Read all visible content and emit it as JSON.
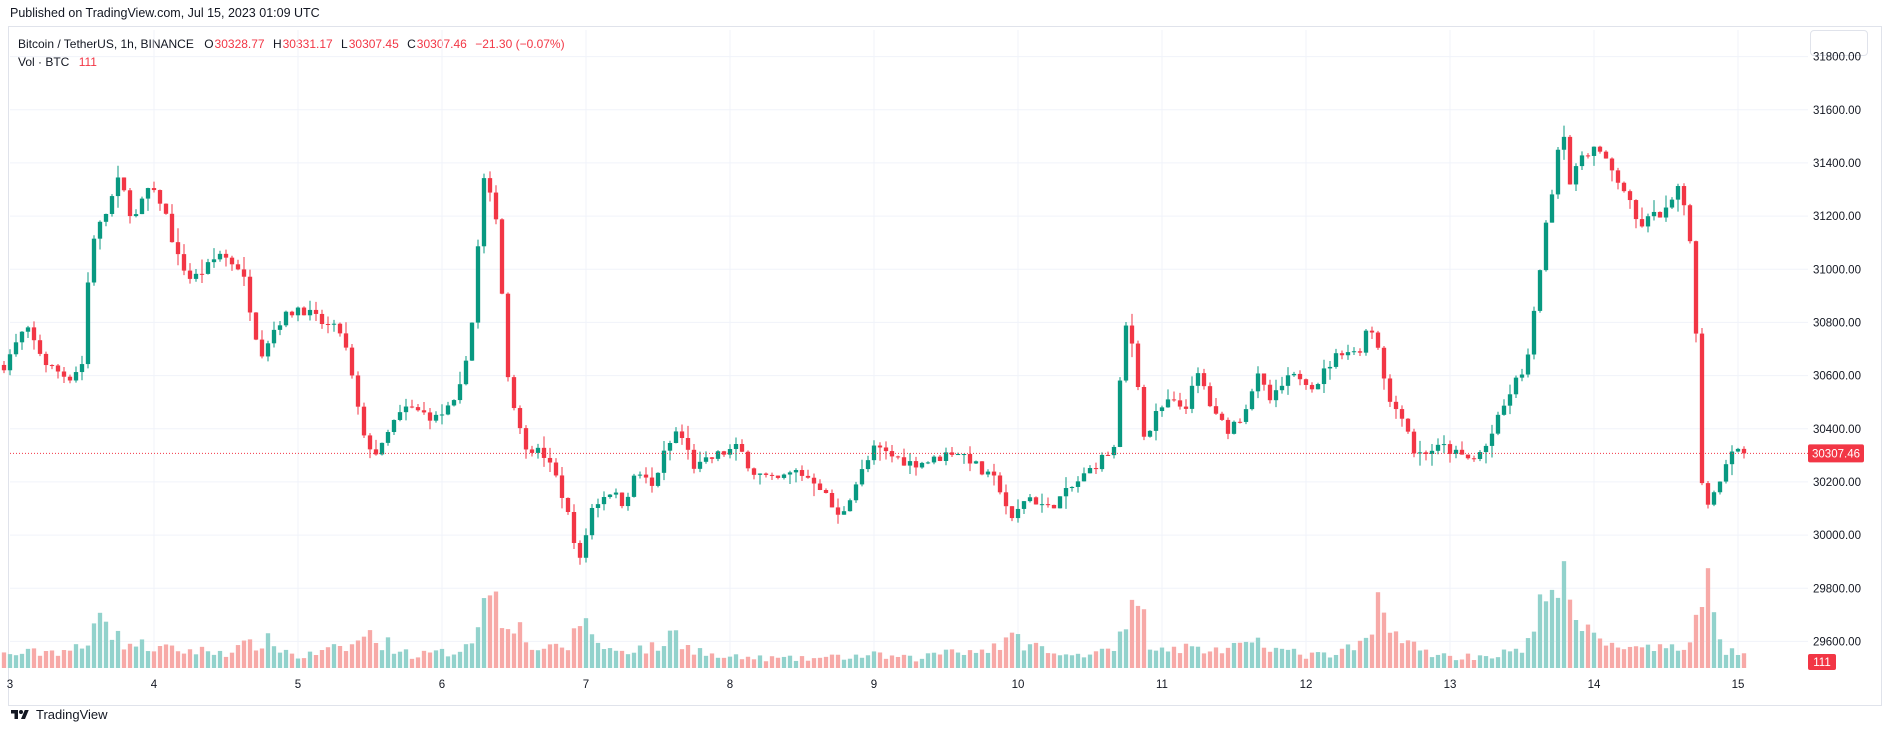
{
  "header": {
    "published": "Published on TradingView.com, Jul 15, 2023 01:09 UTC"
  },
  "legend": {
    "symbol": "Bitcoin / TetherUS, 1h, BINANCE",
    "open_label": "O",
    "open": "30328.77",
    "high_label": "H",
    "high": "30331.17",
    "low_label": "L",
    "low": "30307.45",
    "close_label": "C",
    "close": "30307.46",
    "change": "−21.30 (−0.07%)",
    "volume_label": "Vol · BTC",
    "volume": "111"
  },
  "footer": {
    "brand": "TradingView"
  },
  "colors": {
    "up": "#089981",
    "down": "#f23645",
    "vol_up": "#92d2cc",
    "vol_down": "#f7a9a7",
    "grid": "#f0f3fa",
    "axis_text": "#131722"
  },
  "chart_data": {
    "type": "candlestick",
    "interval": "1h",
    "x_axis": {
      "ticks": [
        "3",
        "4",
        "5",
        "6",
        "7",
        "8",
        "9",
        "10",
        "11",
        "12",
        "13",
        "14",
        "15"
      ]
    },
    "y_axis": {
      "ticks": [
        29600,
        29800,
        30000,
        30200,
        30400,
        30600,
        30800,
        31000,
        31200,
        31400,
        31600,
        31800
      ],
      "range": [
        29500,
        31900
      ],
      "side": "right"
    },
    "last_price": 30307.46,
    "last_price_label": "30307.46",
    "last_volume": 111,
    "last_volume_label": "111",
    "grid": true,
    "anchors": [
      [
        3.0,
        30640
      ],
      [
        3.15,
        30780
      ],
      [
        3.3,
        30640
      ],
      [
        3.45,
        30590
      ],
      [
        3.55,
        30650
      ],
      [
        3.6,
        31100
      ],
      [
        3.7,
        31200
      ],
      [
        3.8,
        31340
      ],
      [
        3.9,
        31180
      ],
      [
        4.0,
        31300
      ],
      [
        4.1,
        31250
      ],
      [
        4.2,
        31050
      ],
      [
        4.3,
        30960
      ],
      [
        4.4,
        31000
      ],
      [
        4.5,
        31060
      ],
      [
        4.65,
        31000
      ],
      [
        4.78,
        30680
      ],
      [
        4.9,
        30800
      ],
      [
        5.05,
        30860
      ],
      [
        5.2,
        30800
      ],
      [
        5.35,
        30760
      ],
      [
        5.42,
        30580
      ],
      [
        5.5,
        30360
      ],
      [
        5.6,
        30300
      ],
      [
        5.7,
        30420
      ],
      [
        5.8,
        30480
      ],
      [
        6.0,
        30440
      ],
      [
        6.15,
        30500
      ],
      [
        6.25,
        30800
      ],
      [
        6.33,
        31340
      ],
      [
        6.42,
        31200
      ],
      [
        6.5,
        30600
      ],
      [
        6.6,
        30350
      ],
      [
        6.75,
        30300
      ],
      [
        6.85,
        30200
      ],
      [
        6.93,
        30050
      ],
      [
        7.0,
        29900
      ],
      [
        7.08,
        30100
      ],
      [
        7.2,
        30170
      ],
      [
        7.3,
        30120
      ],
      [
        7.4,
        30240
      ],
      [
        7.5,
        30180
      ],
      [
        7.58,
        30300
      ],
      [
        7.68,
        30400
      ],
      [
        7.8,
        30250
      ],
      [
        7.95,
        30300
      ],
      [
        8.1,
        30330
      ],
      [
        8.2,
        30240
      ],
      [
        8.35,
        30200
      ],
      [
        8.5,
        30240
      ],
      [
        8.65,
        30200
      ],
      [
        8.8,
        30060
      ],
      [
        8.92,
        30200
      ],
      [
        9.05,
        30330
      ],
      [
        9.15,
        30300
      ],
      [
        9.3,
        30270
      ],
      [
        9.45,
        30280
      ],
      [
        9.6,
        30320
      ],
      [
        9.7,
        30290
      ],
      [
        9.8,
        30230
      ],
      [
        9.9,
        30200
      ],
      [
        10.0,
        30050
      ],
      [
        10.1,
        30150
      ],
      [
        10.25,
        30100
      ],
      [
        10.4,
        30170
      ],
      [
        10.55,
        30250
      ],
      [
        10.65,
        30300
      ],
      [
        10.72,
        30330
      ],
      [
        10.78,
        30800
      ],
      [
        10.85,
        30700
      ],
      [
        10.92,
        30350
      ],
      [
        11.0,
        30450
      ],
      [
        11.08,
        30500
      ],
      [
        11.2,
        30480
      ],
      [
        11.3,
        30610
      ],
      [
        11.4,
        30450
      ],
      [
        11.5,
        30400
      ],
      [
        11.6,
        30450
      ],
      [
        11.7,
        30600
      ],
      [
        11.8,
        30500
      ],
      [
        11.9,
        30580
      ],
      [
        12.0,
        30600
      ],
      [
        12.1,
        30560
      ],
      [
        12.2,
        30640
      ],
      [
        12.3,
        30700
      ],
      [
        12.4,
        30680
      ],
      [
        12.48,
        30800
      ],
      [
        12.55,
        30700
      ],
      [
        12.62,
        30500
      ],
      [
        12.72,
        30450
      ],
      [
        12.8,
        30300
      ],
      [
        12.9,
        30320
      ],
      [
        13.0,
        30330
      ],
      [
        13.1,
        30300
      ],
      [
        13.2,
        30280
      ],
      [
        13.3,
        30340
      ],
      [
        13.38,
        30440
      ],
      [
        13.48,
        30560
      ],
      [
        13.55,
        30620
      ],
      [
        13.6,
        30700
      ],
      [
        13.65,
        30950
      ],
      [
        13.72,
        31200
      ],
      [
        13.78,
        31400
      ],
      [
        13.82,
        31580
      ],
      [
        13.88,
        31300
      ],
      [
        13.95,
        31430
      ],
      [
        14.05,
        31460
      ],
      [
        14.15,
        31380
      ],
      [
        14.25,
        31300
      ],
      [
        14.35,
        31160
      ],
      [
        14.45,
        31200
      ],
      [
        14.55,
        31220
      ],
      [
        14.62,
        31300
      ],
      [
        14.7,
        31200
      ],
      [
        14.75,
        30750
      ],
      [
        14.8,
        30100
      ],
      [
        14.88,
        30160
      ],
      [
        14.95,
        30270
      ],
      [
        15.0,
        30328
      ],
      [
        15.07,
        30307
      ]
    ],
    "volume_anchors": [
      [
        3.0,
        15
      ],
      [
        3.55,
        22
      ],
      [
        3.62,
        88
      ],
      [
        3.72,
        35
      ],
      [
        3.8,
        28
      ],
      [
        4.1,
        20
      ],
      [
        4.5,
        18
      ],
      [
        4.78,
        30
      ],
      [
        5.0,
        12
      ],
      [
        5.4,
        25
      ],
      [
        5.45,
        38
      ],
      [
        5.6,
        28
      ],
      [
        5.8,
        14
      ],
      [
        6.1,
        18
      ],
      [
        6.25,
        45
      ],
      [
        6.3,
        70
      ],
      [
        6.33,
        105
      ],
      [
        6.42,
        60
      ],
      [
        6.5,
        55
      ],
      [
        6.55,
        40
      ],
      [
        6.6,
        25
      ],
      [
        6.75,
        20
      ],
      [
        6.88,
        25
      ],
      [
        7.0,
        60
      ],
      [
        7.1,
        20
      ],
      [
        7.5,
        22
      ],
      [
        7.6,
        40
      ],
      [
        7.7,
        25
      ],
      [
        7.9,
        12
      ],
      [
        8.5,
        10
      ],
      [
        9.0,
        14
      ],
      [
        9.3,
        10
      ],
      [
        9.55,
        22
      ],
      [
        9.7,
        18
      ],
      [
        10.0,
        32
      ],
      [
        10.3,
        12
      ],
      [
        10.55,
        20
      ],
      [
        10.7,
        30
      ],
      [
        10.78,
        50
      ],
      [
        10.83,
        95
      ],
      [
        10.9,
        30
      ],
      [
        11.0,
        25
      ],
      [
        11.3,
        20
      ],
      [
        11.6,
        22
      ],
      [
        11.65,
        40
      ],
      [
        11.8,
        20
      ],
      [
        12.0,
        14
      ],
      [
        12.2,
        14
      ],
      [
        12.45,
        30
      ],
      [
        12.5,
        72
      ],
      [
        12.58,
        60
      ],
      [
        12.65,
        30
      ],
      [
        12.8,
        20
      ],
      [
        13.0,
        12
      ],
      [
        13.3,
        14
      ],
      [
        13.5,
        20
      ],
      [
        13.6,
        35
      ],
      [
        13.65,
        110
      ],
      [
        13.72,
        90
      ],
      [
        13.78,
        100
      ],
      [
        13.85,
        55
      ],
      [
        13.95,
        38
      ],
      [
        14.1,
        30
      ],
      [
        14.3,
        20
      ],
      [
        14.6,
        20
      ],
      [
        14.68,
        35
      ],
      [
        14.72,
        90
      ],
      [
        14.78,
        108
      ],
      [
        14.85,
        40
      ],
      [
        14.9,
        20
      ],
      [
        15.0,
        18
      ],
      [
        15.07,
        12
      ]
    ]
  }
}
